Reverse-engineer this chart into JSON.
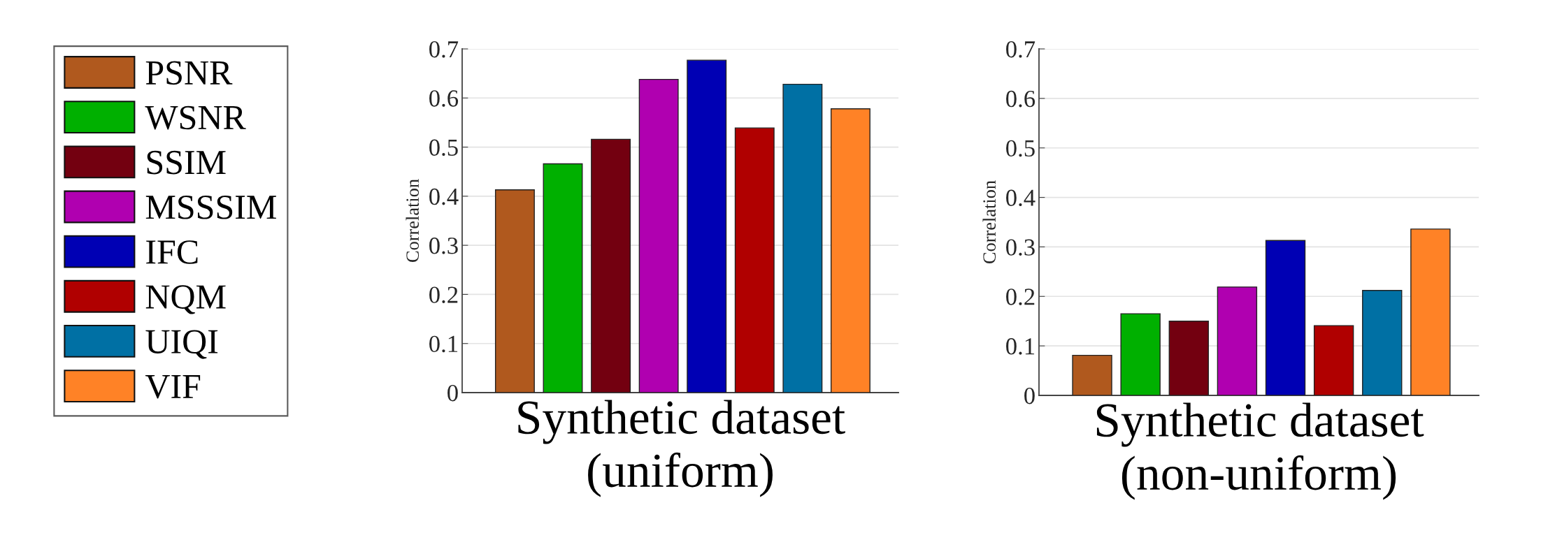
{
  "chart_data": [
    {
      "type": "bar",
      "xlabel": "Synthetic dataset\n(uniform)",
      "ylabel": "Correlation",
      "categories": [
        null
      ],
      "legend": "left",
      "grid": "y",
      "ylim": [
        0,
        0.7
      ],
      "yticks": [
        0,
        0.1,
        0.2,
        0.3,
        0.4,
        0.5,
        0.6,
        0.7
      ],
      "series": [
        {
          "name": "PSNR",
          "color": "#b0591e",
          "values": [
            0.413
          ]
        },
        {
          "name": "WSNR",
          "color": "#00b000",
          "values": [
            0.466
          ]
        },
        {
          "name": "SSIM",
          "color": "#730010",
          "values": [
            0.516
          ]
        },
        {
          "name": "MSSSIM",
          "color": "#b000b0",
          "values": [
            0.638
          ]
        },
        {
          "name": "IFC",
          "color": "#0000b4",
          "values": [
            0.677
          ]
        },
        {
          "name": "NQM",
          "color": "#b00000",
          "values": [
            0.539
          ]
        },
        {
          "name": "UIQI",
          "color": "#0070a4",
          "values": [
            0.628
          ]
        },
        {
          "name": "VIF",
          "color": "#ff8226",
          "values": [
            0.578
          ]
        }
      ]
    },
    {
      "type": "bar",
      "xlabel": "Synthetic dataset\n(non-uniform)",
      "ylabel": "Correlation",
      "categories": [
        null
      ],
      "grid": "y",
      "ylim": [
        0,
        0.7
      ],
      "yticks": [
        0,
        0.1,
        0.2,
        0.3,
        0.4,
        0.5,
        0.6,
        0.7
      ],
      "series": [
        {
          "color": "#b0591e",
          "values": [
            0.081
          ]
        },
        {
          "color": "#00b000",
          "values": [
            0.165
          ]
        },
        {
          "color": "#730010",
          "values": [
            0.15
          ]
        },
        {
          "color": "#b000b0",
          "values": [
            0.219
          ]
        },
        {
          "color": "#0000b4",
          "values": [
            0.313
          ]
        },
        {
          "color": "#b00000",
          "values": [
            0.141
          ]
        },
        {
          "color": "#0070a4",
          "values": [
            0.212
          ]
        },
        {
          "color": "#ff8226",
          "values": [
            0.336
          ]
        }
      ]
    }
  ]
}
